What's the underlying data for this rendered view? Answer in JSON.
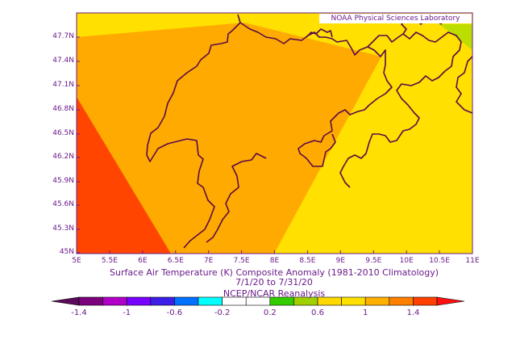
{
  "credit": "NOAA Physical Sciences Laboratory",
  "map": {
    "lat_labels": [
      "47.7N",
      "47.4N",
      "47.1N",
      "46.8N",
      "46.5N",
      "46.2N",
      "45.9N",
      "45.6N",
      "45.3N",
      "45N"
    ],
    "lon_labels": [
      "5E",
      "5.5E",
      "6E",
      "6.5E",
      "7E",
      "7.5E",
      "8E",
      "8.5E",
      "9E",
      "9.5E",
      "10E",
      "10.5E",
      "11E"
    ],
    "lon_range": [
      5,
      11
    ],
    "lat_range": [
      45,
      47.95
    ]
  },
  "caption": {
    "line1": "Surface Air Temperature (K) Composite Anomaly (1981-2010 Climatology)",
    "line2": "7/1/20  to 7/31/20",
    "line3": "NCEP/NCAR Reanalysis"
  },
  "colorbar": {
    "labels": [
      "-1.4",
      "-1",
      "-0.6",
      "-0.2",
      "0.2",
      "0.6",
      "1",
      "1.4"
    ],
    "colors": [
      "#7b007b",
      "#b000c8",
      "#7800ff",
      "#3c1ee6",
      "#0070ff",
      "#00ffff",
      "#ffffff",
      "#ffffff",
      "#33cc00",
      "#a0d000",
      "#ffd800",
      "#ffe000",
      "#ffb000",
      "#ff8000",
      "#ff4000"
    ],
    "under_color": "#5a0a5a",
    "over_color": "#ff1010"
  },
  "fills": {
    "base": "#ffe000",
    "orange": "#ffaa00",
    "red": "#ff4500",
    "green": "#bbdd00"
  }
}
